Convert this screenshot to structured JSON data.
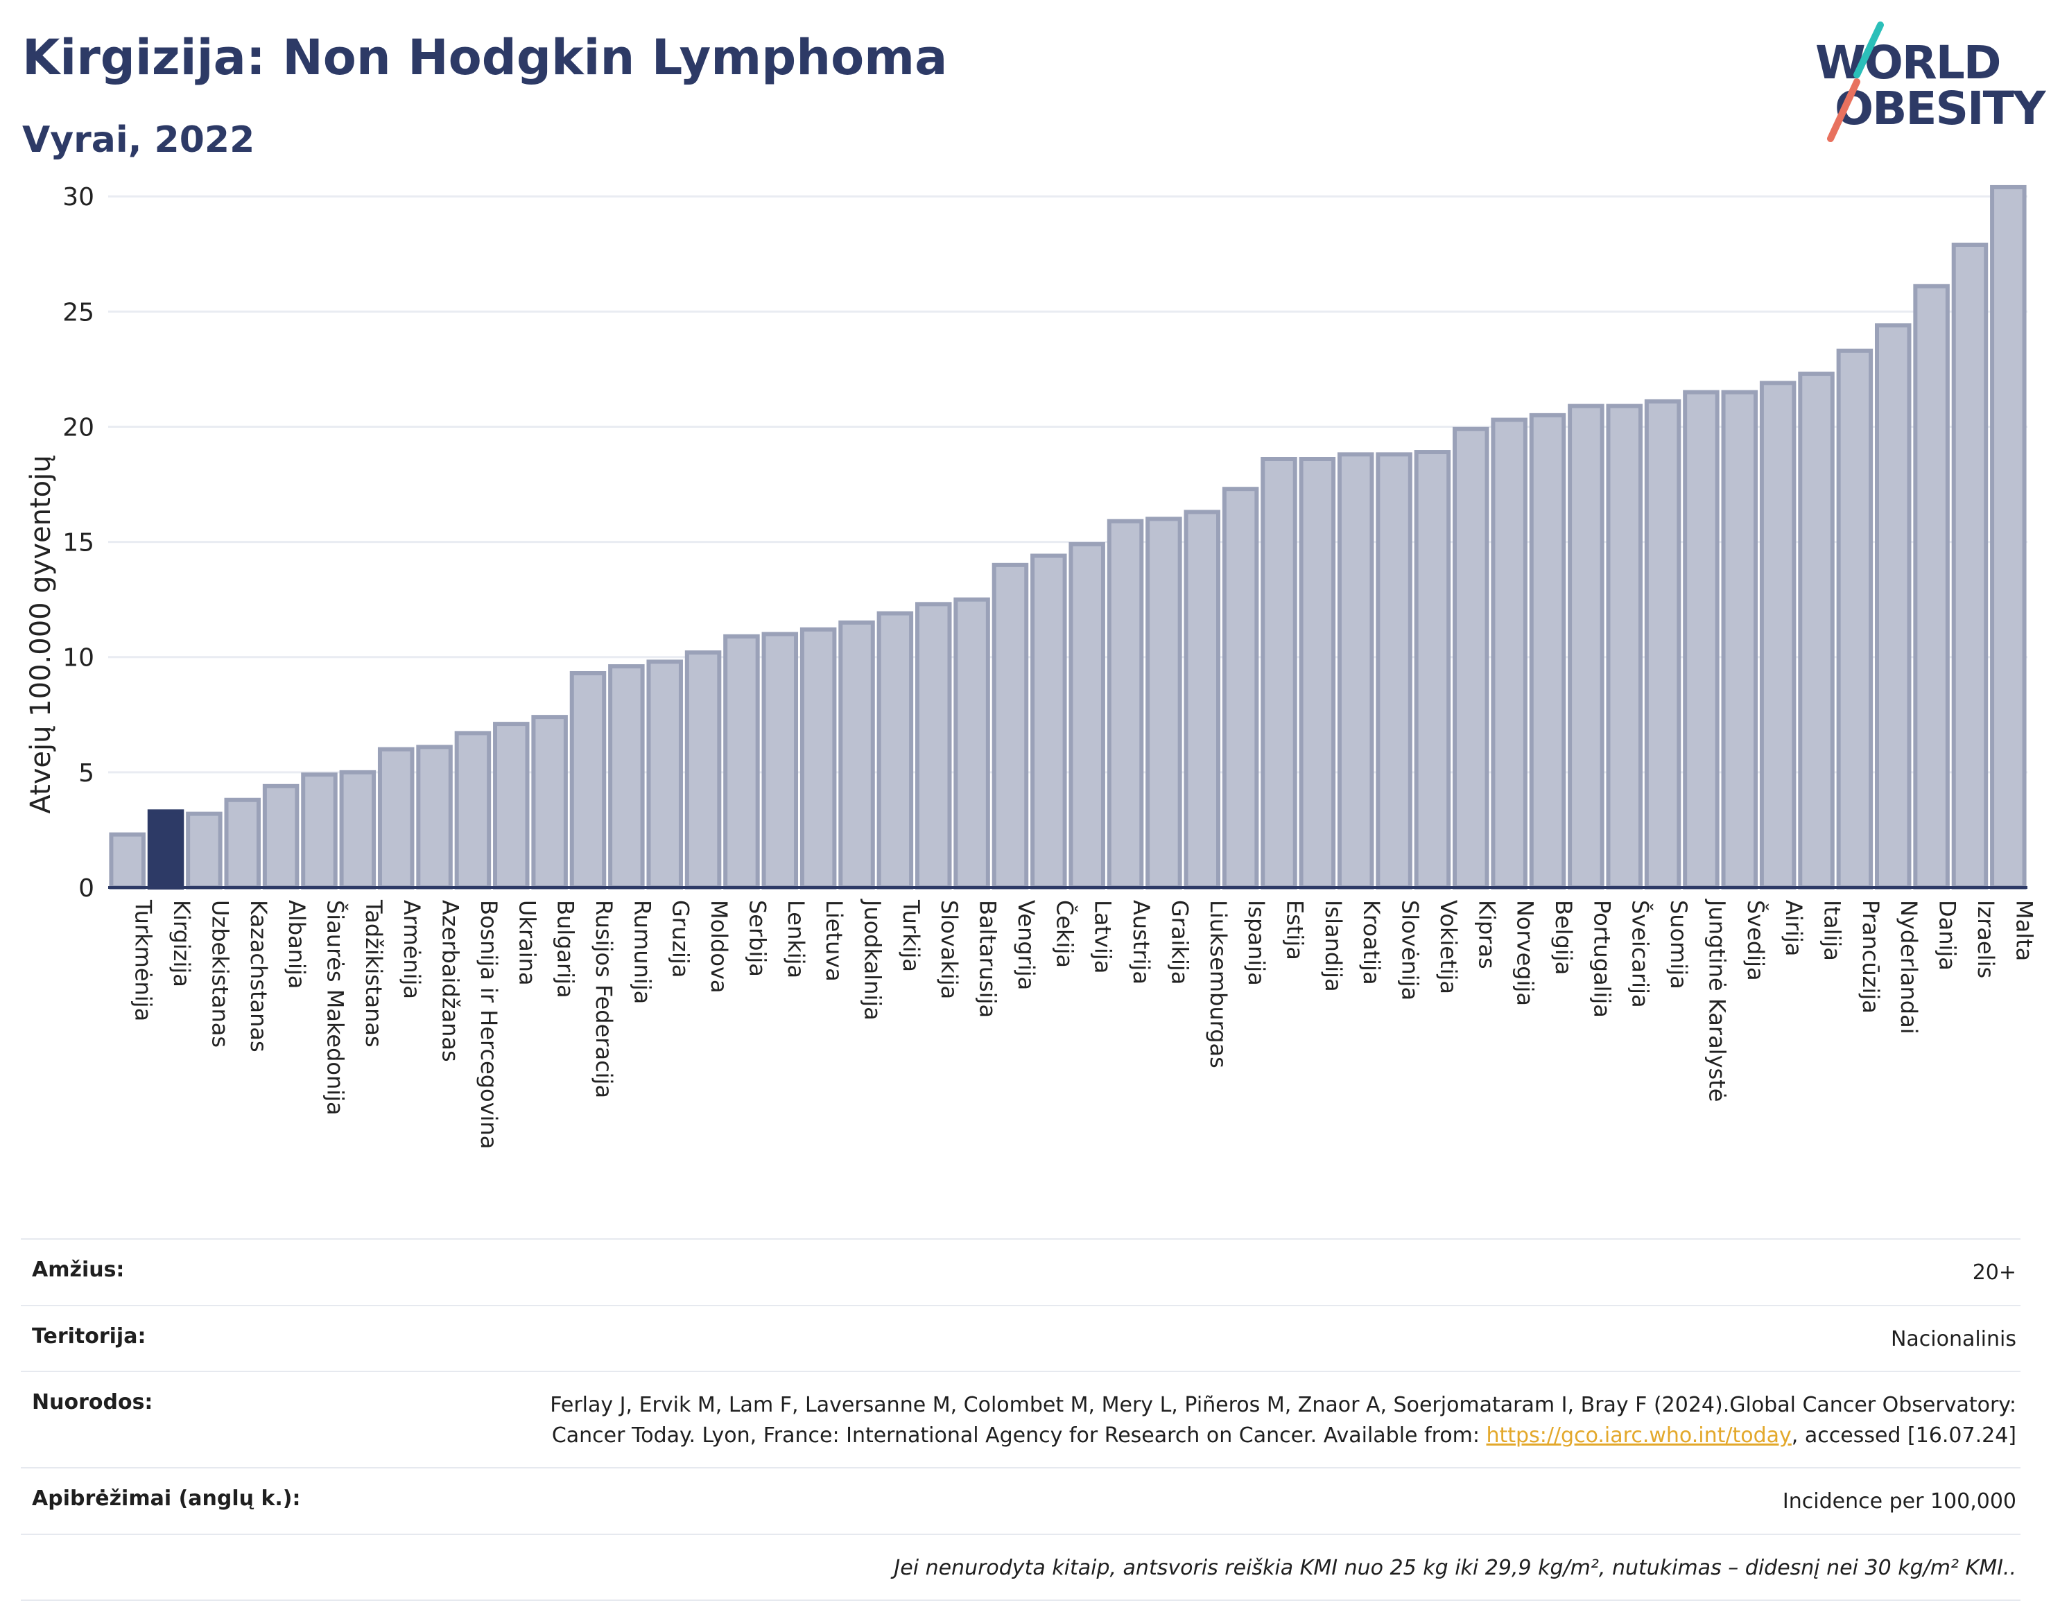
{
  "header": {
    "title": "Kirgizija: Non Hodgkin Lymphoma",
    "subtitle": "Vyrai, 2022",
    "logo_line1": "WORLD",
    "logo_line2": "OBESITY"
  },
  "colors": {
    "bar": "#bcc1d1",
    "bar_border": "#9aa1b8",
    "highlight": "#2d3a66",
    "grid": "#e9ecf2",
    "logo_teal": "#2bbfb9",
    "logo_coral": "#e8715e"
  },
  "chart_data": {
    "type": "bar",
    "ylabel": "Atvejų 100.000 gyventojų",
    "xlabel": "",
    "ylim": [
      0,
      31
    ],
    "yticks": [
      0,
      5,
      10,
      15,
      20,
      25,
      30
    ],
    "grid": true,
    "highlight_category": "Kirgizija",
    "categories": [
      "Turkmėnija",
      "Kirgizija",
      "Uzbekistanas",
      "Kazachstanas",
      "Albanija",
      "Šiaurės Makedonija",
      "Tadžikistanas",
      "Armėnija",
      "Azerbaidžanas",
      "Bosnija ir Hercegovina",
      "Ukraina",
      "Bulgarija",
      "Rusijos Federacija",
      "Rumunija",
      "Gruzija",
      "Moldova",
      "Serbija",
      "Lenkija",
      "Lietuva",
      "Juodkalnija",
      "Turkija",
      "Slovakija",
      "Baltarusija",
      "Vengrija",
      "Čekija",
      "Latvija",
      "Austrija",
      "Graikija",
      "Liuksemburgas",
      "Ispanija",
      "Estija",
      "Islandija",
      "Kroatija",
      "Slovėnija",
      "Vokietija",
      "Kipras",
      "Norvegija",
      "Belgija",
      "Portugalija",
      "Šveicarija",
      "Suomija",
      "Jungtinė Karalystė",
      "Švedija",
      "Airija",
      "Italija",
      "Prancūzija",
      "Nyderlandai",
      "Danija",
      "Izraelis",
      "Malta"
    ],
    "values": [
      2.3,
      3.3,
      3.2,
      3.8,
      4.4,
      4.9,
      5.0,
      6.0,
      6.1,
      6.7,
      7.1,
      7.4,
      9.3,
      9.6,
      9.8,
      10.2,
      10.9,
      11.0,
      11.2,
      11.5,
      11.9,
      12.3,
      12.5,
      14.0,
      14.4,
      14.9,
      15.9,
      16.0,
      16.3,
      17.3,
      18.6,
      18.6,
      18.8,
      18.8,
      18.9,
      19.9,
      20.3,
      20.5,
      20.9,
      20.9,
      21.1,
      21.5,
      21.5,
      21.9,
      22.3,
      23.3,
      24.4,
      26.1,
      27.9,
      30.4
    ]
  },
  "meta": {
    "age_label": "Amžius:",
    "age_value": "20+",
    "territory_label": "Teritorija:",
    "territory_value": "Nacionalinis",
    "refs_label": "Nuorodos:",
    "refs_text_1": "Ferlay J, Ervik M, Lam F, Laversanne M, Colombet M, Mery L, Piñeros M, Znaor A, Soerjomataram I, Bray F (2024).Global Cancer Observatory: Cancer Today. Lyon, France: International Agency for Research on Cancer. Available from: ",
    "refs_link": "https://gco.iarc.who.int/today",
    "refs_text_2": ", accessed [16.07.24]",
    "definitions_label": "Apibrėžimai (anglų k.):",
    "definitions_value": "Incidence per 100,000",
    "note": "Jei nenurodyta kitaip, antsvoris reiškia KMI nuo 25 kg iki 29,9 kg/m², nutukimas – didesnį nei 30 kg/m² KMI.."
  }
}
